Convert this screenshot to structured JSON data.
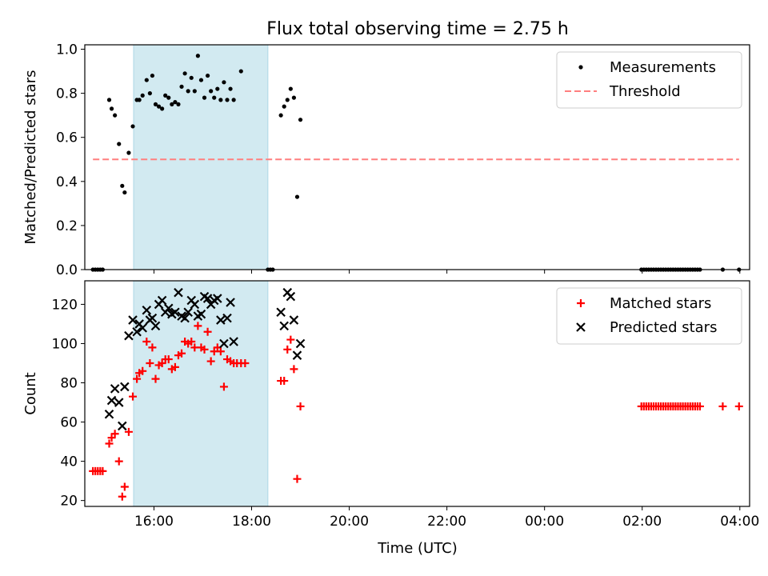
{
  "figure": {
    "title": "Flux total observing time = 2.75 h",
    "xlabel": "Time (UTC)"
  },
  "colors": {
    "measurement": "#000000",
    "threshold": "#ff7f7f",
    "matched": "#ff0000",
    "predicted": "#000000",
    "shade": "#add8e6"
  },
  "chart_data": [
    {
      "type": "scatter",
      "title": "Flux total observing time = 2.75 h",
      "xlabel": "",
      "ylabel": "Matched/Predicted stars",
      "xlim": [
        "14:35",
        "04:12"
      ],
      "ylim": [
        0,
        1.02
      ],
      "xticks": [
        "16:00",
        "18:00",
        "20:00",
        "22:00",
        "00:00",
        "02:00",
        "04:00"
      ],
      "yticks": [
        "0.0",
        "0.2",
        "0.4",
        "0.6",
        "0.8",
        "1.0"
      ],
      "shaded_interval": [
        "15:35",
        "18:20"
      ],
      "threshold": {
        "name": "Threshold",
        "value": 0.5,
        "x": [
          "14:45",
          "03:59"
        ]
      },
      "legend": {
        "position": "top-right",
        "entries": [
          "Measurements",
          "Threshold"
        ]
      },
      "series": [
        {
          "name": "Measurements",
          "marker": "dot",
          "points": [
            [
              "14:45",
              0
            ],
            [
              "14:48",
              0
            ],
            [
              "14:51",
              0
            ],
            [
              "14:54",
              0
            ],
            [
              "14:57",
              0
            ],
            [
              "15:05",
              0.77
            ],
            [
              "15:08",
              0.73
            ],
            [
              "15:12",
              0.7
            ],
            [
              "15:17",
              0.57
            ],
            [
              "15:21",
              0.38
            ],
            [
              "15:24",
              0.35
            ],
            [
              "15:29",
              0.53
            ],
            [
              "15:34",
              0.65
            ],
            [
              "15:39",
              0.77
            ],
            [
              "15:42",
              0.77
            ],
            [
              "15:46",
              0.79
            ],
            [
              "15:51",
              0.86
            ],
            [
              "15:55",
              0.8
            ],
            [
              "15:58",
              0.88
            ],
            [
              "16:02",
              0.75
            ],
            [
              "16:06",
              0.74
            ],
            [
              "16:10",
              0.73
            ],
            [
              "16:14",
              0.79
            ],
            [
              "16:18",
              0.78
            ],
            [
              "16:22",
              0.75
            ],
            [
              "16:26",
              0.76
            ],
            [
              "16:30",
              0.75
            ],
            [
              "16:34",
              0.83
            ],
            [
              "16:38",
              0.89
            ],
            [
              "16:42",
              0.81
            ],
            [
              "16:46",
              0.87
            ],
            [
              "16:50",
              0.81
            ],
            [
              "16:54",
              0.97
            ],
            [
              "16:58",
              0.86
            ],
            [
              "17:02",
              0.78
            ],
            [
              "17:06",
              0.88
            ],
            [
              "17:10",
              0.81
            ],
            [
              "17:14",
              0.78
            ],
            [
              "17:18",
              0.82
            ],
            [
              "17:22",
              0.77
            ],
            [
              "17:26",
              0.85
            ],
            [
              "17:30",
              0.77
            ],
            [
              "17:34",
              0.82
            ],
            [
              "17:38",
              0.77
            ],
            [
              "17:47",
              0.9
            ],
            [
              "18:20",
              0
            ],
            [
              "18:23",
              0
            ],
            [
              "18:26",
              0
            ],
            [
              "18:36",
              0.7
            ],
            [
              "18:40",
              0.74
            ],
            [
              "18:44",
              0.77
            ],
            [
              "18:48",
              0.82
            ],
            [
              "18:52",
              0.78
            ],
            [
              "18:56",
              0.33
            ],
            [
              "19:00",
              0.68
            ],
            [
              "01:59",
              0
            ],
            [
              "02:02",
              0
            ],
            [
              "02:05",
              0
            ],
            [
              "02:08",
              0
            ],
            [
              "02:11",
              0
            ],
            [
              "02:14",
              0
            ],
            [
              "02:17",
              0
            ],
            [
              "02:20",
              0
            ],
            [
              "02:23",
              0
            ],
            [
              "02:26",
              0
            ],
            [
              "02:29",
              0
            ],
            [
              "02:32",
              0
            ],
            [
              "02:35",
              0
            ],
            [
              "02:38",
              0
            ],
            [
              "02:41",
              0
            ],
            [
              "02:44",
              0
            ],
            [
              "02:47",
              0
            ],
            [
              "02:50",
              0
            ],
            [
              "02:53",
              0
            ],
            [
              "02:56",
              0
            ],
            [
              "02:59",
              0
            ],
            [
              "03:02",
              0
            ],
            [
              "03:05",
              0
            ],
            [
              "03:08",
              0
            ],
            [
              "03:11",
              0
            ],
            [
              "03:39",
              0
            ],
            [
              "03:59",
              0
            ]
          ]
        }
      ]
    },
    {
      "type": "scatter",
      "title": "",
      "xlabel": "Time (UTC)",
      "ylabel": "Count",
      "xlim": [
        "14:35",
        "04:12"
      ],
      "ylim": [
        17,
        132
      ],
      "xticks": [
        "16:00",
        "18:00",
        "20:00",
        "22:00",
        "00:00",
        "02:00",
        "04:00"
      ],
      "yticks": [
        "20",
        "40",
        "60",
        "80",
        "100",
        "120"
      ],
      "shaded_interval": [
        "15:35",
        "18:20"
      ],
      "legend": {
        "position": "top-right",
        "entries": [
          "Matched stars",
          "Predicted stars"
        ]
      },
      "series": [
        {
          "name": "Matched stars",
          "marker": "plus",
          "points": [
            [
              "14:45",
              35
            ],
            [
              "14:48",
              35
            ],
            [
              "14:51",
              35
            ],
            [
              "14:54",
              35
            ],
            [
              "14:57",
              35
            ],
            [
              "15:05",
              49
            ],
            [
              "15:08",
              52
            ],
            [
              "15:12",
              54
            ],
            [
              "15:17",
              40
            ],
            [
              "15:21",
              22
            ],
            [
              "15:24",
              27
            ],
            [
              "15:29",
              55
            ],
            [
              "15:34",
              73
            ],
            [
              "15:39",
              82
            ],
            [
              "15:42",
              85
            ],
            [
              "15:46",
              86
            ],
            [
              "15:51",
              101
            ],
            [
              "15:55",
              90
            ],
            [
              "15:58",
              98
            ],
            [
              "16:02",
              82
            ],
            [
              "16:06",
              89
            ],
            [
              "16:10",
              90
            ],
            [
              "16:14",
              92
            ],
            [
              "16:18",
              92
            ],
            [
              "16:22",
              87
            ],
            [
              "16:26",
              88
            ],
            [
              "16:30",
              94
            ],
            [
              "16:34",
              95
            ],
            [
              "16:38",
              101
            ],
            [
              "16:42",
              100
            ],
            [
              "16:46",
              101
            ],
            [
              "16:50",
              98
            ],
            [
              "16:54",
              109
            ],
            [
              "16:58",
              98
            ],
            [
              "17:02",
              97
            ],
            [
              "17:06",
              106
            ],
            [
              "17:10",
              91
            ],
            [
              "17:14",
              96
            ],
            [
              "17:18",
              98
            ],
            [
              "17:22",
              96
            ],
            [
              "17:26",
              78
            ],
            [
              "17:30",
              92
            ],
            [
              "17:34",
              91
            ],
            [
              "17:38",
              90
            ],
            [
              "17:42",
              90
            ],
            [
              "17:47",
              90
            ],
            [
              "17:52",
              90
            ],
            [
              "18:36",
              81
            ],
            [
              "18:40",
              81
            ],
            [
              "18:44",
              97
            ],
            [
              "18:48",
              102
            ],
            [
              "18:52",
              87
            ],
            [
              "18:56",
              31
            ],
            [
              "19:00",
              68
            ],
            [
              "01:59",
              68
            ],
            [
              "02:02",
              68
            ],
            [
              "02:05",
              68
            ],
            [
              "02:08",
              68
            ],
            [
              "02:11",
              68
            ],
            [
              "02:14",
              68
            ],
            [
              "02:17",
              68
            ],
            [
              "02:20",
              68
            ],
            [
              "02:23",
              68
            ],
            [
              "02:26",
              68
            ],
            [
              "02:29",
              68
            ],
            [
              "02:32",
              68
            ],
            [
              "02:35",
              68
            ],
            [
              "02:38",
              68
            ],
            [
              "02:41",
              68
            ],
            [
              "02:44",
              68
            ],
            [
              "02:47",
              68
            ],
            [
              "02:50",
              68
            ],
            [
              "02:53",
              68
            ],
            [
              "02:56",
              68
            ],
            [
              "02:59",
              68
            ],
            [
              "03:02",
              68
            ],
            [
              "03:05",
              68
            ],
            [
              "03:08",
              68
            ],
            [
              "03:11",
              68
            ],
            [
              "03:39",
              68
            ],
            [
              "03:59",
              68
            ]
          ]
        },
        {
          "name": "Predicted stars",
          "marker": "x",
          "points": [
            [
              "15:05",
              64
            ],
            [
              "15:08",
              71
            ],
            [
              "15:12",
              77
            ],
            [
              "15:17",
              70
            ],
            [
              "15:21",
              58
            ],
            [
              "15:24",
              78
            ],
            [
              "15:29",
              104
            ],
            [
              "15:34",
              112
            ],
            [
              "15:39",
              106
            ],
            [
              "15:42",
              110
            ],
            [
              "15:46",
              108
            ],
            [
              "15:51",
              117
            ],
            [
              "15:55",
              112
            ],
            [
              "15:58",
              113
            ],
            [
              "16:02",
              109
            ],
            [
              "16:06",
              120
            ],
            [
              "16:10",
              122
            ],
            [
              "16:14",
              116
            ],
            [
              "16:18",
              118
            ],
            [
              "16:22",
              115
            ],
            [
              "16:26",
              116
            ],
            [
              "16:30",
              126
            ],
            [
              "16:34",
              114
            ],
            [
              "16:38",
              113
            ],
            [
              "16:42",
              116
            ],
            [
              "16:46",
              122
            ],
            [
              "16:50",
              120
            ],
            [
              "16:54",
              114
            ],
            [
              "16:58",
              115
            ],
            [
              "17:02",
              124
            ],
            [
              "17:06",
              123
            ],
            [
              "17:10",
              120
            ],
            [
              "17:14",
              122
            ],
            [
              "17:18",
              123
            ],
            [
              "17:22",
              112
            ],
            [
              "17:26",
              100
            ],
            [
              "17:30",
              113
            ],
            [
              "17:34",
              121
            ],
            [
              "17:38",
              101
            ],
            [
              "18:36",
              116
            ],
            [
              "18:40",
              109
            ],
            [
              "18:44",
              126
            ],
            [
              "18:48",
              124
            ],
            [
              "18:52",
              112
            ],
            [
              "18:56",
              94
            ],
            [
              "19:00",
              100
            ]
          ]
        }
      ]
    }
  ]
}
